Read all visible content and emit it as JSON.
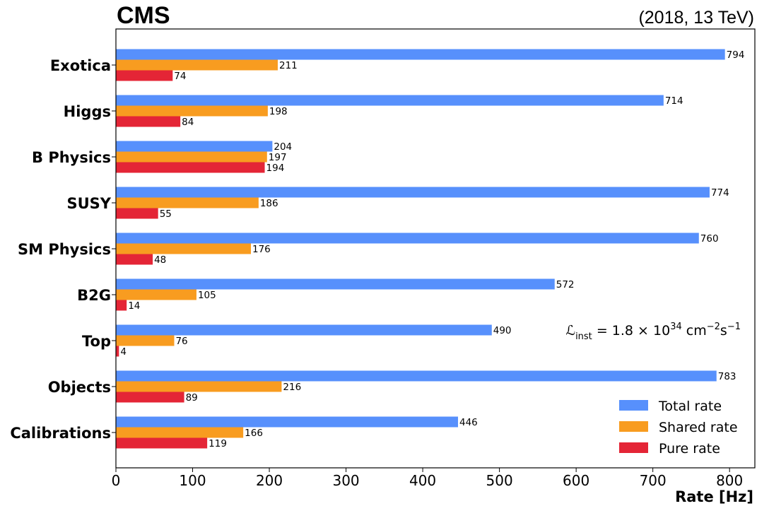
{
  "header": {
    "experiment": "CMS",
    "run_info": "(2018, 13 TeV)"
  },
  "annotation": {
    "lumi_symbol": "ℒ",
    "lumi_sub": "inst",
    "lumi_eq": " = 1.8 × 10",
    "lumi_exp": "34",
    "lumi_unit_a": " cm",
    "lumi_unit_a_exp": "−2",
    "lumi_unit_b": "s",
    "lumi_unit_b_exp": "−1"
  },
  "chart_data": {
    "type": "bar",
    "orientation": "horizontal",
    "categories": [
      "Exotica",
      "Higgs",
      "B Physics",
      "SUSY",
      "SM Physics",
      "B2G",
      "Top",
      "Objects",
      "Calibrations"
    ],
    "series": [
      {
        "name": "Total rate",
        "color": "#5790fc",
        "values": [
          794,
          714,
          204,
          774,
          760,
          572,
          490,
          783,
          446
        ]
      },
      {
        "name": "Shared rate",
        "color": "#f89c20",
        "values": [
          211,
          198,
          197,
          186,
          176,
          105,
          76,
          216,
          166
        ]
      },
      {
        "name": "Pure rate",
        "color": "#e42536",
        "values": [
          74,
          84,
          194,
          55,
          48,
          14,
          4,
          89,
          119
        ]
      }
    ],
    "xlabel": "Rate [Hz]",
    "ylabel": "",
    "xlim": [
      0,
      833
    ],
    "xticks": [
      0,
      100,
      200,
      300,
      400,
      500,
      600,
      700,
      800
    ],
    "grid": false,
    "legend_position": "lower-right"
  }
}
